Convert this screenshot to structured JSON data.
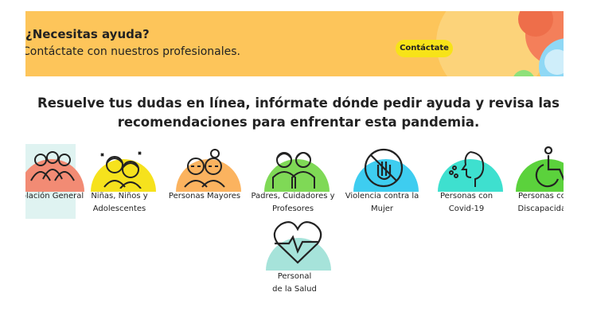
{
  "banner": {
    "title": "¿Necesitas ayuda?",
    "subtitle": "Contáctate con nuestros profesionales.",
    "button_label": "Contáctate"
  },
  "headline": {
    "line1": "Resuelve tus dudas en línea, infórmate dónde pedir ayuda y revisa las",
    "line2": "recomendaciones para enfrentar esta pandemia."
  },
  "categories": [
    {
      "line1": "Población General",
      "line2": "",
      "color": "#f28b74",
      "icon": "group-icon",
      "selected": true
    },
    {
      "line1": "Niñas, Niños y",
      "line2": "Adolescentes",
      "color": "#f6e21d",
      "icon": "children-icon"
    },
    {
      "line1": "Personas Mayores",
      "line2": "",
      "color": "#fbb35f",
      "icon": "elderly-icon"
    },
    {
      "line1": "Padres, Cuidadores y",
      "line2": "Profesores",
      "color": "#7fd956",
      "icon": "parents-icon"
    },
    {
      "line1": "Violencia contra la",
      "line2": "Mujer",
      "color": "#3ecdf0",
      "icon": "stop-hand-icon"
    },
    {
      "line1": "Personas con",
      "line2": "Covid-19",
      "color": "#3ee0cf",
      "icon": "sick-person-icon"
    },
    {
      "line1": "Personas con",
      "line2": "Discapacidad",
      "color": "#5bd23c",
      "icon": "wheelchair-icon"
    },
    {
      "line1": "Personal",
      "line2": "de la Salud",
      "color": "#a6e3da",
      "icon": "heart-pulse-icon"
    }
  ]
}
